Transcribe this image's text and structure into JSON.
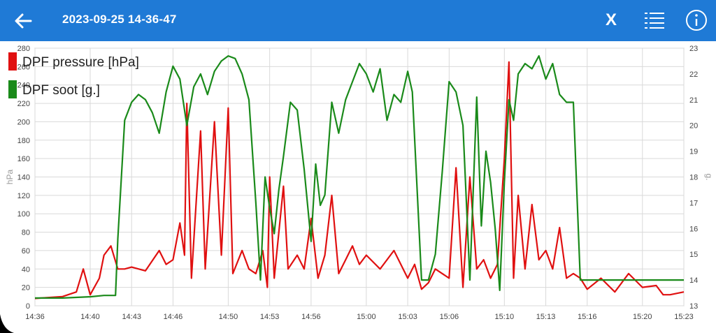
{
  "header": {
    "title": "2023-09-25 14-36-47",
    "close_label": "X",
    "back_icon": "arrow-left-icon",
    "list_icon": "list-icon",
    "info_icon": "info-icon"
  },
  "colors": {
    "appbar": "#1f7ad6",
    "pressure": "#e01010",
    "soot": "#1a8a1a",
    "grid": "#d9d9d9",
    "text": "#444444"
  },
  "chart_data": {
    "type": "line",
    "title": "",
    "legend_position": "top-left",
    "grid": true,
    "x_ticks": [
      "14:36",
      "14:40",
      "14:43",
      "14:46",
      "14:50",
      "14:53",
      "14:56",
      "15:00",
      "15:03",
      "15:06",
      "15:10",
      "15:13",
      "15:16",
      "15:20",
      "15:23"
    ],
    "x_range": [
      "14:36",
      "15:23"
    ],
    "left_axis": {
      "label": "hPa",
      "min": 0,
      "max": 280,
      "ticks": [
        0,
        20,
        40,
        60,
        80,
        100,
        120,
        140,
        160,
        180,
        200,
        220,
        240,
        260,
        280
      ]
    },
    "right_axis": {
      "label": "g.",
      "min": 13,
      "max": 23,
      "ticks": [
        13,
        14,
        15,
        16,
        17,
        18,
        19,
        20,
        21,
        22,
        23
      ]
    },
    "series": [
      {
        "name": "DPF pressure [hPa]",
        "axis": "left",
        "x": [
          "14:36",
          "14:38",
          "14:39",
          "14:39:30",
          "14:40",
          "14:40:40",
          "14:41",
          "14:41:30",
          "14:42",
          "14:42:30",
          "14:43",
          "14:44",
          "14:45",
          "14:45:30",
          "14:46",
          "14:46:30",
          "14:46:50",
          "14:47",
          "14:47:20",
          "14:48",
          "14:48:20",
          "14:49",
          "14:49:30",
          "14:50",
          "14:50:20",
          "14:51",
          "14:51:30",
          "14:52",
          "14:52:30",
          "14:52:50",
          "14:53",
          "14:53:20",
          "14:54",
          "14:54:20",
          "14:55",
          "14:55:30",
          "14:56",
          "14:56:30",
          "14:57",
          "14:57:30",
          "14:58",
          "14:58:30",
          "14:59",
          "14:59:30",
          "15:00",
          "15:01",
          "15:02",
          "15:03",
          "15:03:30",
          "15:04",
          "15:04:30",
          "15:05",
          "15:05:30",
          "15:06",
          "15:06:30",
          "15:07",
          "15:07:30",
          "15:08",
          "15:08:30",
          "15:09",
          "15:09:30",
          "15:10",
          "15:10:20",
          "15:10:40",
          "15:11",
          "15:11:30",
          "15:12",
          "15:12:30",
          "15:13",
          "15:13:30",
          "15:14",
          "15:14:30",
          "15:15",
          "15:15:30",
          "15:16",
          "15:17",
          "15:18",
          "15:19",
          "15:20",
          "15:21",
          "15:21:30",
          "15:22",
          "15:23"
        ],
        "values": [
          8,
          10,
          15,
          40,
          12,
          30,
          55,
          65,
          40,
          40,
          42,
          38,
          60,
          45,
          50,
          90,
          55,
          220,
          30,
          190,
          40,
          200,
          55,
          215,
          35,
          60,
          40,
          35,
          60,
          20,
          140,
          30,
          130,
          40,
          55,
          40,
          95,
          30,
          55,
          120,
          35,
          50,
          65,
          45,
          55,
          40,
          60,
          30,
          45,
          18,
          25,
          40,
          35,
          30,
          150,
          20,
          140,
          40,
          50,
          30,
          45,
          160,
          265,
          30,
          120,
          40,
          110,
          50,
          60,
          40,
          85,
          30,
          35,
          30,
          18,
          30,
          15,
          35,
          20,
          22,
          12,
          12,
          15
        ]
      },
      {
        "name": "DPF soot [g.]",
        "axis": "right",
        "x": [
          "14:36",
          "14:38",
          "14:40",
          "14:41",
          "14:41:50",
          "14:42",
          "14:42:30",
          "14:43",
          "14:43:30",
          "14:44",
          "14:44:30",
          "14:45",
          "14:45:30",
          "14:46",
          "14:46:30",
          "14:47",
          "14:47:30",
          "14:48",
          "14:48:30",
          "14:49",
          "14:49:30",
          "14:50",
          "14:50:30",
          "14:51",
          "14:51:30",
          "14:52",
          "14:52:20",
          "14:52:40",
          "14:53",
          "14:53:20",
          "14:53:40",
          "14:54",
          "14:54:30",
          "14:55",
          "14:55:30",
          "14:56",
          "14:56:20",
          "14:56:40",
          "14:57",
          "14:57:30",
          "14:58",
          "14:58:30",
          "14:59",
          "14:59:30",
          "15:00",
          "15:00:30",
          "15:01",
          "15:01:30",
          "15:02",
          "15:02:30",
          "15:03",
          "15:03:20",
          "15:04",
          "15:04:30",
          "15:05",
          "15:05:30",
          "15:06",
          "15:06:30",
          "15:07",
          "15:07:30",
          "15:08",
          "15:08:20",
          "15:08:40",
          "15:09",
          "15:09:20",
          "15:09:40",
          "15:10",
          "15:10:20",
          "15:10:40",
          "15:11",
          "15:11:30",
          "15:12",
          "15:12:30",
          "15:13",
          "15:13:30",
          "15:14",
          "15:14:30",
          "15:15",
          "15:15:30",
          "15:16",
          "15:18",
          "15:20",
          "15:22",
          "15:23"
        ],
        "values": [
          13.3,
          13.3,
          13.35,
          13.4,
          13.4,
          15.6,
          20.2,
          20.9,
          21.2,
          21.0,
          20.5,
          19.7,
          21.3,
          22.3,
          21.8,
          20.0,
          21.5,
          22.0,
          21.2,
          22.1,
          22.5,
          22.7,
          22.6,
          22.0,
          21.0,
          17.0,
          14.0,
          18.0,
          16.8,
          15.8,
          17.5,
          18.8,
          20.9,
          20.6,
          18.3,
          15.5,
          18.5,
          16.9,
          17.3,
          20.9,
          19.7,
          21.0,
          21.7,
          22.4,
          22.0,
          21.3,
          22.2,
          20.2,
          21.2,
          20.9,
          22.1,
          21.3,
          14.0,
          14.0,
          15.0,
          18.2,
          21.7,
          21.3,
          20.0,
          14.0,
          21.1,
          16.1,
          19.0,
          17.8,
          16.0,
          13.6,
          17.8,
          21.0,
          20.2,
          22.0,
          22.4,
          22.2,
          22.7,
          21.8,
          22.4,
          21.2,
          20.9,
          20.9,
          14.0,
          14.0,
          14.0,
          14.0,
          14.0,
          14.0
        ]
      }
    ]
  }
}
